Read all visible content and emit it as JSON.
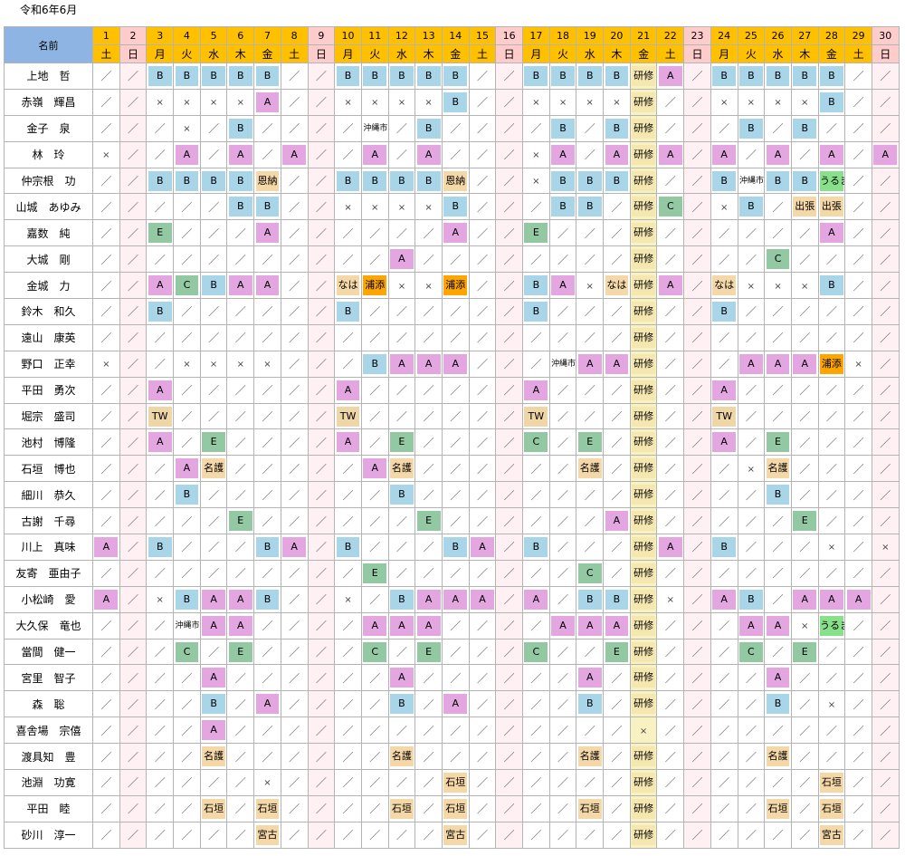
{
  "title": "令和6年6月",
  "header_name": "名前",
  "days": [
    {
      "n": "1",
      "w": "土"
    },
    {
      "n": "2",
      "w": "日"
    },
    {
      "n": "3",
      "w": "月"
    },
    {
      "n": "4",
      "w": "火"
    },
    {
      "n": "5",
      "w": "水"
    },
    {
      "n": "6",
      "w": "木"
    },
    {
      "n": "7",
      "w": "金"
    },
    {
      "n": "8",
      "w": "土"
    },
    {
      "n": "9",
      "w": "日"
    },
    {
      "n": "10",
      "w": "月"
    },
    {
      "n": "11",
      "w": "火"
    },
    {
      "n": "12",
      "w": "水"
    },
    {
      "n": "13",
      "w": "木"
    },
    {
      "n": "14",
      "w": "金"
    },
    {
      "n": "15",
      "w": "土"
    },
    {
      "n": "16",
      "w": "日"
    },
    {
      "n": "17",
      "w": "月"
    },
    {
      "n": "18",
      "w": "火"
    },
    {
      "n": "19",
      "w": "水"
    },
    {
      "n": "20",
      "w": "木"
    },
    {
      "n": "21",
      "w": "金"
    },
    {
      "n": "22",
      "w": "土"
    },
    {
      "n": "23",
      "w": "日"
    },
    {
      "n": "24",
      "w": "月"
    },
    {
      "n": "25",
      "w": "火"
    },
    {
      "n": "26",
      "w": "水"
    },
    {
      "n": "27",
      "w": "木"
    },
    {
      "n": "28",
      "w": "金"
    },
    {
      "n": "29",
      "w": "土"
    },
    {
      "n": "30",
      "w": "日"
    }
  ],
  "colors": {
    "header_day": "#ffc000",
    "header_sunday": "#ffcccc",
    "header_name": "#8db4e2",
    "B": "#a8d5e8",
    "A": "#e3a6e0",
    "C_E": "#92c9a2",
    "浦添": "#ffa500",
    "研修_column": "#f8f2c2",
    "うるま": "#88e08a"
  },
  "rows": [
    {
      "name": "上地　哲",
      "cells": [
        "／",
        "／",
        "B",
        "B",
        "B",
        "B",
        "B",
        "／",
        "／",
        "B",
        "B",
        "B",
        "B",
        "B",
        "／",
        "／",
        "B",
        "B",
        "B",
        "B",
        "研修",
        "A",
        "／",
        "B",
        "B",
        "B",
        "B",
        "B",
        "／",
        "／"
      ]
    },
    {
      "name": "赤嶺　輝昌",
      "cells": [
        "／",
        "／",
        "×",
        "×",
        "×",
        "×",
        "A",
        "／",
        "／",
        "×",
        "×",
        "×",
        "×",
        "B",
        "／",
        "／",
        "×",
        "×",
        "×",
        "×",
        "研修",
        "／",
        "／",
        "×",
        "×",
        "×",
        "×",
        "B",
        "／",
        "／"
      ]
    },
    {
      "name": "金子　泉",
      "cells": [
        "／",
        "／",
        "／",
        "×",
        "／",
        "B",
        "／",
        "／",
        "／",
        "／",
        "沖縄市",
        "／",
        "B",
        "／",
        "／",
        "／",
        "／",
        "B",
        "／",
        "B",
        "研修",
        "／",
        "／",
        "／",
        "B",
        "／",
        "B",
        "／",
        "／",
        "／"
      ]
    },
    {
      "name": "林　玲",
      "cells": [
        "×",
        "／",
        "／",
        "A",
        "／",
        "A",
        "／",
        "A",
        "／",
        "／",
        "A",
        "／",
        "A",
        "／",
        "／",
        "／",
        "×",
        "A",
        "／",
        "A",
        "研修",
        "A",
        "／",
        "A",
        "／",
        "A",
        "／",
        "A",
        "／",
        "A"
      ]
    },
    {
      "name": "仲宗根　功",
      "cells": [
        "／",
        "／",
        "B",
        "B",
        "B",
        "B",
        "恩納",
        "／",
        "／",
        "B",
        "B",
        "B",
        "B",
        "恩納",
        "／",
        "／",
        "×",
        "B",
        "B",
        "B",
        "研修",
        "／",
        "／",
        "B",
        "沖縄市",
        "B",
        "B",
        "うるま",
        "／",
        "／"
      ]
    },
    {
      "name": "山城　あゆみ",
      "cells": [
        "／",
        "／",
        "／",
        "／",
        "／",
        "B",
        "B",
        "／",
        "／",
        "×",
        "×",
        "×",
        "×",
        "B",
        "／",
        "／",
        "／",
        "B",
        "B",
        "／",
        "研修",
        "C",
        "／",
        "×",
        "B",
        "／",
        "出張",
        "出張",
        "／",
        "／"
      ]
    },
    {
      "name": "嘉数　純",
      "cells": [
        "／",
        "／",
        "E",
        "／",
        "／",
        "／",
        "A",
        "／",
        "／",
        "／",
        "／",
        "／",
        "／",
        "A",
        "／",
        "／",
        "E",
        "／",
        "／",
        "／",
        "研修",
        "／",
        "／",
        "／",
        "／",
        "／",
        "／",
        "A",
        "／",
        "／"
      ]
    },
    {
      "name": "大城　剛",
      "cells": [
        "／",
        "／",
        "／",
        "／",
        "／",
        "／",
        "／",
        "／",
        "／",
        "／",
        "／",
        "A",
        "／",
        "／",
        "／",
        "／",
        "／",
        "／",
        "／",
        "／",
        "研修",
        "／",
        "／",
        "／",
        "／",
        "C",
        "／",
        "／",
        "／",
        "／"
      ]
    },
    {
      "name": "金城　力",
      "cells": [
        "／",
        "／",
        "A",
        "C",
        "B",
        "A",
        "A",
        "／",
        "／",
        "なは",
        "浦添",
        "×",
        "×",
        "浦添",
        "／",
        "／",
        "B",
        "A",
        "×",
        "なは",
        "研修",
        "A",
        "／",
        "なは",
        "×",
        "×",
        "×",
        "B",
        "／",
        "／"
      ]
    },
    {
      "name": "鈴木　和久",
      "cells": [
        "／",
        "／",
        "B",
        "／",
        "／",
        "／",
        "／",
        "／",
        "／",
        "B",
        "／",
        "／",
        "／",
        "／",
        "／",
        "／",
        "B",
        "／",
        "／",
        "／",
        "研修",
        "／",
        "／",
        "B",
        "／",
        "／",
        "／",
        "／",
        "／",
        "／"
      ]
    },
    {
      "name": "遠山　康英",
      "cells": [
        "／",
        "／",
        "／",
        "／",
        "／",
        "／",
        "／",
        "／",
        "／",
        "／",
        "／",
        "／",
        "／",
        "／",
        "／",
        "／",
        "／",
        "／",
        "／",
        "／",
        "研修",
        "／",
        "／",
        "／",
        "／",
        "／",
        "／",
        "／",
        "／",
        "／"
      ]
    },
    {
      "name": "野口　正幸",
      "cells": [
        "×",
        "／",
        "／",
        "×",
        "×",
        "×",
        "×",
        "／",
        "／",
        "／",
        "B",
        "A",
        "A",
        "A",
        "／",
        "／",
        "／",
        "沖縄市",
        "A",
        "A",
        "研修",
        "／",
        "／",
        "／",
        "A",
        "A",
        "A",
        "浦添",
        "×",
        "／"
      ]
    },
    {
      "name": "平田　勇次",
      "cells": [
        "／",
        "／",
        "A",
        "／",
        "／",
        "／",
        "／",
        "／",
        "／",
        "A",
        "／",
        "／",
        "／",
        "／",
        "／",
        "／",
        "A",
        "／",
        "／",
        "／",
        "研修",
        "／",
        "／",
        "A",
        "／",
        "／",
        "／",
        "／",
        "／",
        "／"
      ]
    },
    {
      "name": "堀宗　盛司",
      "cells": [
        "／",
        "／",
        "TW",
        "／",
        "／",
        "／",
        "／",
        "／",
        "／",
        "TW",
        "／",
        "／",
        "／",
        "／",
        "／",
        "／",
        "TW",
        "／",
        "／",
        "／",
        "研修",
        "／",
        "／",
        "TW",
        "／",
        "／",
        "／",
        "／",
        "／",
        "／"
      ]
    },
    {
      "name": "池村　博隆",
      "cells": [
        "／",
        "／",
        "A",
        "／",
        "E",
        "／",
        "／",
        "／",
        "／",
        "A",
        "／",
        "E",
        "／",
        "／",
        "／",
        "／",
        "C",
        "／",
        "E",
        "／",
        "研修",
        "／",
        "／",
        "A",
        "／",
        "E",
        "／",
        "／",
        "／",
        "／"
      ]
    },
    {
      "name": "石垣　博也",
      "cells": [
        "／",
        "／",
        "／",
        "A",
        "名護",
        "／",
        "／",
        "／",
        "／",
        "／",
        "A",
        "名護",
        "／",
        "／",
        "／",
        "／",
        "／",
        "／",
        "名護",
        "／",
        "研修",
        "／",
        "／",
        "／",
        "×",
        "名護",
        "／",
        "／",
        "／",
        "／"
      ]
    },
    {
      "name": "細川　恭久",
      "cells": [
        "／",
        "／",
        "／",
        "B",
        "／",
        "／",
        "／",
        "／",
        "／",
        "／",
        "／",
        "B",
        "／",
        "／",
        "／",
        "／",
        "／",
        "／",
        "／",
        "／",
        "研修",
        "／",
        "／",
        "／",
        "／",
        "B",
        "／",
        "／",
        "／",
        "／"
      ]
    },
    {
      "name": "古謝　千尋",
      "cells": [
        "／",
        "／",
        "／",
        "／",
        "／",
        "E",
        "／",
        "／",
        "／",
        "／",
        "／",
        "／",
        "E",
        "／",
        "／",
        "／",
        "／",
        "／",
        "／",
        "A",
        "研修",
        "／",
        "／",
        "／",
        "／",
        "／",
        "E",
        "／",
        "／",
        "／"
      ]
    },
    {
      "name": "川上　真味",
      "cells": [
        "A",
        "／",
        "B",
        "／",
        "／",
        "／",
        "B",
        "A",
        "／",
        "B",
        "／",
        "／",
        "／",
        "B",
        "A",
        "／",
        "B",
        "／",
        "／",
        "／",
        "研修",
        "A",
        "／",
        "B",
        "／",
        "／",
        "／",
        "×",
        "／",
        "×"
      ]
    },
    {
      "name": "友寄　亜由子",
      "cells": [
        "／",
        "／",
        "／",
        "／",
        "／",
        "／",
        "／",
        "／",
        "／",
        "／",
        "E",
        "／",
        "／",
        "／",
        "／",
        "／",
        "／",
        "／",
        "C",
        "／",
        "研修",
        "／",
        "／",
        "／",
        "／",
        "／",
        "／",
        "／",
        "／",
        "／"
      ]
    },
    {
      "name": "小松崎　愛",
      "cells": [
        "A",
        "／",
        "×",
        "B",
        "A",
        "A",
        "B",
        "／",
        "／",
        "×",
        "／",
        "B",
        "A",
        "A",
        "A",
        "／",
        "A",
        "／",
        "B",
        "B",
        "研修",
        "×",
        "／",
        "A",
        "B",
        "／",
        "A",
        "A",
        "A",
        "／"
      ]
    },
    {
      "name": "大久保　竜也",
      "cells": [
        "／",
        "／",
        "／",
        "沖縄市",
        "A",
        "A",
        "／",
        "／",
        "／",
        "／",
        "A",
        "A",
        "A",
        "／",
        "／",
        "／",
        "／",
        "A",
        "A",
        "A",
        "研修",
        "／",
        "／",
        "／",
        "A",
        "A",
        "×",
        "うるま",
        "／",
        "／"
      ]
    },
    {
      "name": "當間　健一",
      "cells": [
        "／",
        "／",
        "／",
        "C",
        "／",
        "E",
        "／",
        "／",
        "／",
        "／",
        "C",
        "／",
        "E",
        "／",
        "／",
        "／",
        "C",
        "／",
        "／",
        "E",
        "研修",
        "／",
        "／",
        "／",
        "C",
        "／",
        "E",
        "／",
        "／",
        "／"
      ]
    },
    {
      "name": "宮里　智子",
      "cells": [
        "／",
        "／",
        "／",
        "／",
        "A",
        "／",
        "／",
        "／",
        "／",
        "／",
        "／",
        "A",
        "／",
        "／",
        "／",
        "／",
        "／",
        "／",
        "A",
        "／",
        "研修",
        "／",
        "／",
        "／",
        "／",
        "A",
        "／",
        "／",
        "／",
        "／"
      ]
    },
    {
      "name": "森　聡",
      "cells": [
        "／",
        "／",
        "／",
        "／",
        "B",
        "／",
        "A",
        "／",
        "／",
        "／",
        "／",
        "B",
        "／",
        "A",
        "／",
        "／",
        "／",
        "／",
        "B",
        "／",
        "研修",
        "／",
        "／",
        "／",
        "／",
        "B",
        "／",
        "×",
        "／",
        "／"
      ]
    },
    {
      "name": "喜舎場　宗僖",
      "cells": [
        "／",
        "／",
        "／",
        "／",
        "A",
        "／",
        "／",
        "／",
        "／",
        "／",
        "／",
        "／",
        "／",
        "／",
        "／",
        "／",
        "／",
        "／",
        "／",
        "／",
        "×",
        "／",
        "／",
        "／",
        "／",
        "／",
        "／",
        "／",
        "／",
        "／"
      ]
    },
    {
      "name": "渡具知　豊",
      "cells": [
        "／",
        "／",
        "／",
        "／",
        "名護",
        "／",
        "／",
        "／",
        "／",
        "／",
        "／",
        "名護",
        "／",
        "／",
        "／",
        "／",
        "／",
        "／",
        "名護",
        "／",
        "研修",
        "／",
        "／",
        "／",
        "／",
        "名護",
        "／",
        "／",
        "／",
        "／"
      ]
    },
    {
      "name": "池淵　功寛",
      "cells": [
        "／",
        "／",
        "／",
        "／",
        "／",
        "／",
        "×",
        "／",
        "／",
        "／",
        "／",
        "／",
        "／",
        "石垣",
        "／",
        "／",
        "／",
        "／",
        "／",
        "／",
        "研修",
        "／",
        "／",
        "／",
        "／",
        "／",
        "／",
        "石垣",
        "／",
        "／"
      ]
    },
    {
      "name": "平田　睦",
      "cells": [
        "／",
        "／",
        "／",
        "／",
        "石垣",
        "／",
        "石垣",
        "／",
        "／",
        "／",
        "／",
        "石垣",
        "／",
        "石垣",
        "／",
        "／",
        "／",
        "／",
        "石垣",
        "／",
        "研修",
        "／",
        "／",
        "／",
        "／",
        "石垣",
        "／",
        "石垣",
        "／",
        "／"
      ]
    },
    {
      "name": "砂川　淳一",
      "cells": [
        "／",
        "／",
        "／",
        "／",
        "／",
        "／",
        "宮古",
        "／",
        "／",
        "／",
        "／",
        "／",
        "／",
        "宮古",
        "／",
        "／",
        "／",
        "／",
        "／",
        "／",
        "研修",
        "／",
        "／",
        "／",
        "／",
        "／",
        "／",
        "宮古",
        "／",
        "／"
      ]
    }
  ]
}
